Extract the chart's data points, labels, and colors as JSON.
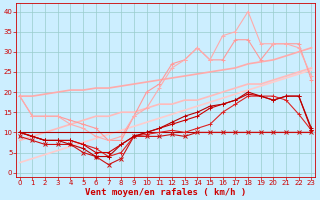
{
  "xlabel": "Vent moyen/en rafales ( km/h )",
  "bg_color": "#cceeff",
  "grid_color": "#99cccc",
  "x": [
    0,
    1,
    2,
    3,
    4,
    5,
    6,
    7,
    8,
    9,
    10,
    11,
    12,
    13,
    14,
    15,
    16,
    17,
    18,
    19,
    20,
    21,
    22,
    23
  ],
  "series": [
    {
      "y": [
        10,
        10,
        10,
        10,
        10,
        10,
        10,
        10,
        10,
        10,
        10,
        10,
        10,
        10,
        10,
        10,
        10,
        10,
        10,
        10,
        10,
        10,
        10,
        10
      ],
      "color": "#aa0000",
      "lw": 0.8,
      "marker": null,
      "zorder": 5
    },
    {
      "y": [
        9,
        8,
        7,
        7,
        7,
        5,
        4,
        2,
        3.5,
        9,
        9,
        9,
        9.5,
        9,
        10,
        10,
        10,
        10,
        10,
        10,
        10,
        10,
        10,
        10
      ],
      "color": "#cc1111",
      "lw": 0.8,
      "marker": "x",
      "ms": 2.5,
      "zorder": 5
    },
    {
      "y": [
        10,
        9,
        8,
        8,
        8,
        7,
        6,
        4,
        5,
        9,
        9.5,
        10,
        10.5,
        10,
        11,
        12,
        15,
        17,
        19,
        19,
        19,
        18,
        14.5,
        10.5
      ],
      "color": "#dd2222",
      "lw": 0.8,
      "marker": "+",
      "ms": 2.5,
      "zorder": 5
    },
    {
      "y": [
        10,
        9,
        8,
        8,
        8,
        7,
        5,
        5,
        7,
        9,
        10,
        11,
        12,
        13,
        14,
        16,
        17,
        18,
        19.5,
        19,
        18,
        19,
        19,
        10.5
      ],
      "color": "#cc0000",
      "lw": 0.8,
      "marker": "+",
      "ms": 2.5,
      "zorder": 5
    },
    {
      "y": [
        10,
        9,
        8,
        8,
        7,
        6,
        4,
        4,
        7,
        9,
        10,
        11,
        12.5,
        14,
        15,
        16.5,
        17,
        18,
        20,
        19,
        18,
        19,
        19,
        11
      ],
      "color": "#bb0000",
      "lw": 0.8,
      "marker": "+",
      "ms": 2.5,
      "zorder": 5
    },
    {
      "y": [
        19,
        14,
        14,
        14,
        13,
        12,
        11,
        8,
        8,
        14,
        20,
        22,
        27,
        28,
        31,
        28,
        28,
        33,
        33,
        28,
        32,
        32,
        32,
        23
      ],
      "color": "#ff9999",
      "lw": 0.8,
      "marker": "+",
      "ms": 2.5,
      "zorder": 3
    },
    {
      "y": [
        19,
        14,
        14,
        14,
        12,
        11,
        9,
        8,
        9,
        14,
        16,
        21,
        26,
        28,
        31,
        28,
        34,
        35,
        40,
        32,
        32,
        32,
        31,
        24
      ],
      "color": "#ffaaaa",
      "lw": 0.8,
      "marker": "+",
      "ms": 2.5,
      "zorder": 3
    },
    {
      "y": [
        2.5,
        3.5,
        4.5,
        5.5,
        6.5,
        7.5,
        8.5,
        9.5,
        10.5,
        11.5,
        12.5,
        13.5,
        14.5,
        15.5,
        16.5,
        17.5,
        18.5,
        19.5,
        20.5,
        21.5,
        22.5,
        23.5,
        24.5,
        25.5
      ],
      "color": "#ffcccc",
      "lw": 1.2,
      "marker": null,
      "zorder": 2
    },
    {
      "y": [
        8,
        9,
        10,
        11,
        12,
        13,
        14,
        14,
        15,
        15,
        16,
        17,
        17,
        18,
        18,
        19,
        20,
        21,
        22,
        22,
        23,
        24,
        25,
        26
      ],
      "color": "#ffbbbb",
      "lw": 1.2,
      "marker": null,
      "zorder": 2
    },
    {
      "y": [
        19,
        19,
        19.5,
        20,
        20.5,
        20.5,
        21,
        21,
        21.5,
        22,
        22.5,
        23,
        23.5,
        24,
        24.5,
        25,
        25.5,
        26,
        27,
        27.5,
        28,
        29,
        30,
        31
      ],
      "color": "#ffaaaa",
      "lw": 1.2,
      "marker": null,
      "zorder": 2
    }
  ],
  "yticks": [
    0,
    5,
    10,
    15,
    20,
    25,
    30,
    35,
    40
  ],
  "xticks": [
    0,
    1,
    2,
    3,
    4,
    5,
    6,
    7,
    8,
    9,
    10,
    11,
    12,
    13,
    14,
    15,
    16,
    17,
    18,
    19,
    20,
    21,
    22,
    23
  ],
  "xlim": [
    -0.3,
    23.3
  ],
  "ylim": [
    -1,
    42
  ],
  "tick_fontsize": 5.0,
  "xlabel_fontsize": 6.5,
  "tick_color": "#cc0000",
  "label_color": "#cc0000",
  "spine_color": "#cc0000"
}
